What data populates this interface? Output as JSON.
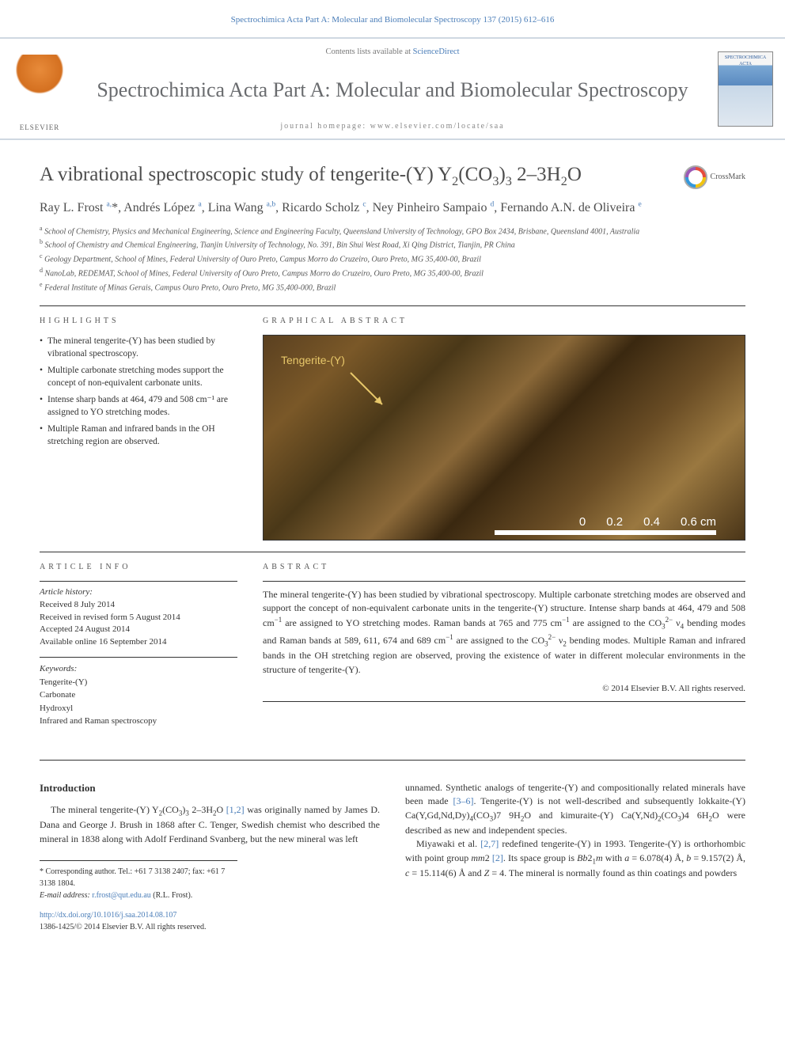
{
  "citation": "Spectrochimica Acta Part A: Molecular and Biomolecular Spectroscopy 137 (2015) 612–616",
  "masthead": {
    "contents_prefix": "Contents lists available at ",
    "contents_link": "ScienceDirect",
    "journal_name": "Spectrochimica Acta Part A: Molecular and Biomolecular Spectroscopy",
    "homepage_prefix": "journal homepage: ",
    "homepage": "www.elsevier.com/locate/saa",
    "publisher_logo_text": "ELSEVIER",
    "cover_text": "SPECTROCHIMICA ACTA"
  },
  "crossmark_label": "CrossMark",
  "title_html": "A vibrational spectroscopic study of tengerite-(Y) Y<sub>2</sub>(CO<sub>3</sub>)<sub>3</sub> 2–3H<sub>2</sub>O",
  "authors_html": "Ray L. Frost <sup>a,</sup>*, Andrés López <sup>a</sup>, Lina Wang <sup>a,b</sup>, Ricardo Scholz <sup>c</sup>, Ney Pinheiro Sampaio <sup>d</sup>, Fernando A.N. de Oliveira <sup>e</sup>",
  "affiliations": [
    "a School of Chemistry, Physics and Mechanical Engineering, Science and Engineering Faculty, Queensland University of Technology, GPO Box 2434, Brisbane, Queensland 4001, Australia",
    "b School of Chemistry and Chemical Engineering, Tianjin University of Technology, No. 391, Bin Shui West Road, Xi Qing District, Tianjin, PR China",
    "c Geology Department, School of Mines, Federal University of Ouro Preto, Campus Morro do Cruzeiro, Ouro Preto, MG 35,400-00, Brazil",
    "d NanoLab, REDEMAT, School of Mines, Federal University of Ouro Preto, Campus Morro do Cruzeiro, Ouro Preto, MG 35,400-00, Brazil",
    "e Federal Institute of Minas Gerais, Campus Ouro Preto, Ouro Preto, MG 35,400-000, Brazil"
  ],
  "highlights_label": "HIGHLIGHTS",
  "highlights": [
    "The mineral tengerite-(Y) has been studied by vibrational spectroscopy.",
    "Multiple carbonate stretching modes support the concept of non-equivalent carbonate units.",
    "Intense sharp bands at 464, 479 and 508 cm⁻¹ are assigned to YO stretching modes.",
    "Multiple Raman and infrared bands in the OH stretching region are observed."
  ],
  "graphical_abstract_label": "GRAPHICAL ABSTRACT",
  "ga_image": {
    "sample_label": "Tengerite-(Y)",
    "scale_ticks": [
      "0",
      "0.2",
      "0.4",
      "0.6 cm"
    ],
    "dominant_colors": [
      "#5a4020",
      "#7a5828",
      "#4a3818",
      "#8a6838",
      "#3a2810"
    ]
  },
  "article_info_label": "ARTICLE INFO",
  "article_history": {
    "header": "Article history:",
    "received": "Received 8 July 2014",
    "revised": "Received in revised form 5 August 2014",
    "accepted": "Accepted 24 August 2014",
    "online": "Available online 16 September 2014"
  },
  "keywords_header": "Keywords:",
  "keywords": [
    "Tengerite-(Y)",
    "Carbonate",
    "Hydroxyl",
    "Infrared and Raman spectroscopy"
  ],
  "abstract_label": "ABSTRACT",
  "abstract_html": "The mineral tengerite-(Y) has been studied by vibrational spectroscopy. Multiple carbonate stretching modes are observed and support the concept of non-equivalent carbonate units in the tengerite-(Y) structure. Intense sharp bands at 464, 479 and 508 cm<sup>−1</sup> are assigned to YO stretching modes. Raman bands at 765 and 775 cm<sup>−1</sup> are assigned to the CO<sub>3</sub><sup>2−</sup> ν<sub>4</sub> bending modes and Raman bands at 589, 611, 674 and 689 cm<sup>−1</sup> are assigned to the CO<sub>3</sub><sup>2−</sup> ν<sub>2</sub> bending modes. Multiple Raman and infrared bands in the OH stretching region are observed, proving the existence of water in different molecular environments in the structure of tengerite-(Y).",
  "copyright": "© 2014 Elsevier B.V. All rights reserved.",
  "intro_heading": "Introduction",
  "intro_left_html": "The mineral tengerite-(Y) Y<sub>2</sub>(CO<sub>3</sub>)<sub>3</sub> 2–3H<sub>2</sub>O <a>[1,2]</a> was originally named by James D. Dana and George J. Brush in 1868 after C. Tenger, Swedish chemist who described the mineral in 1838 along with Adolf Ferdinand Svanberg, but the new mineral was left",
  "intro_right_html_1": "unnamed. Synthetic analogs of tengerite-(Y) and compositionally related minerals have been made <a>[3–6]</a>. Tengerite-(Y) is not well-described and subsequently lokkaite-(Y) Ca(Y,Gd,Nd,Dy)<sub>4</sub>(CO<sub>3</sub>)7 9H<sub>2</sub>O and kimuraite-(Y) Ca(Y,Nd)<sub>2</sub>(CO<sub>3</sub>)4 6H<sub>2</sub>O were described as new and independent species.",
  "intro_right_html_2": "Miyawaki et al. <a>[2,7]</a> redefined tengerite-(Y) in 1993. Tengerite-(Y) is orthorhombic with point group <i>mm</i>2 <a>[2]</a>. Its space group is <i>Bb</i>2<sub>1</sub><i>m</i> with <i>a</i> = 6.078(4) Å, <i>b</i> = 9.157(2) Å, <i>c</i> = 15.114(6) Å and <i>Z</i> = 4. The mineral is normally found as thin coatings and powders",
  "corresponding": {
    "line1": "* Corresponding author. Tel.: +61 7 3138 2407; fax: +61 7 3138 1804.",
    "email_label": "E-mail address: ",
    "email": "r.frost@qut.edu.au",
    "email_suffix": " (R.L. Frost)."
  },
  "doi": {
    "url": "http://dx.doi.org/10.1016/j.saa.2014.08.107",
    "issn_line": "1386-1425/© 2014 Elsevier B.V. All rights reserved."
  }
}
